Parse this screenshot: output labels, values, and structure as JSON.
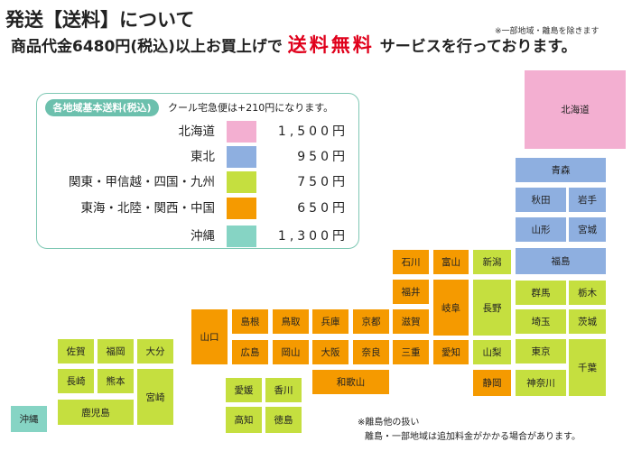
{
  "header": {
    "title": "発送【送料】について",
    "note_top": "※一部地域・離島を除きます",
    "subtitle_before": "商品代金6480円(税込)以上お買上げで",
    "subtitle_red": "送料無料",
    "subtitle_after": "サービスを行っております。"
  },
  "legend": {
    "badge": "各地域基本送料(税込)",
    "note": "クール宅急便は+210円になります。",
    "rows": [
      {
        "label": "北海道",
        "price": "1,500円",
        "color": "#f3afd1"
      },
      {
        "label": "東北",
        "price": "950円",
        "color": "#8eafe0"
      },
      {
        "label": "関東・甲信越・四国・九州",
        "price": "750円",
        "color": "#c5df3f"
      },
      {
        "label": "東海・北陸・関西・中国",
        "price": "650円",
        "color": "#f59a00"
      },
      {
        "label": "沖縄",
        "price": "1,300円",
        "color": "#86d4c4"
      }
    ]
  },
  "map": {
    "prefectures": {
      "hokkaido": "北海道",
      "aomori": "青森",
      "akita": "秋田",
      "iwate": "岩手",
      "yamagata": "山形",
      "miyagi": "宮城",
      "fukushima": "福島",
      "niigata": "新潟",
      "gunma": "群馬",
      "tochigi": "栃木",
      "nagano": "長野",
      "saitama": "埼玉",
      "ibaraki": "茨城",
      "yamanashi": "山梨",
      "tokyo": "東京",
      "chiba": "千葉",
      "kanagawa": "神奈川",
      "shizuoka": "静岡",
      "ishikawa": "石川",
      "toyama": "富山",
      "fukui": "福井",
      "gifu": "岐阜",
      "shiga": "滋賀",
      "aichi": "愛知",
      "mie": "三重",
      "kyoto": "京都",
      "hyogo": "兵庫",
      "osaka": "大阪",
      "nara": "奈良",
      "wakayama": "和歌山",
      "tottori": "鳥取",
      "shimane": "島根",
      "okayama": "岡山",
      "hiroshima": "広島",
      "yamaguchi": "山口",
      "ehime": "愛媛",
      "kagawa": "香川",
      "kochi": "高知",
      "tokushima": "徳島",
      "fukuoka": "福岡",
      "saga": "佐賀",
      "oita": "大分",
      "nagasaki": "長崎",
      "kumamoto": "熊本",
      "miyazaki": "宮崎",
      "kagoshima": "鹿児島",
      "okinawa": "沖縄"
    }
  },
  "footer": {
    "note_line1": "※離島他の扱い",
    "note_line2": "離島・一部地域は追加料金がかかる場合があります。"
  }
}
